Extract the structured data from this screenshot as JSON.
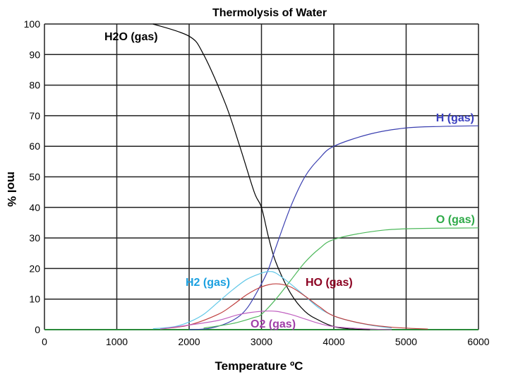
{
  "chart_data": {
    "type": "line",
    "title": "Thermolysis of Water",
    "xlabel": "Temperature ºC",
    "ylabel": "mol %",
    "xlim": [
      0,
      6000
    ],
    "ylim": [
      0,
      100
    ],
    "xticks": [
      0,
      1000,
      2000,
      3000,
      4000,
      5000,
      6000
    ],
    "yticks": [
      0,
      10,
      20,
      30,
      40,
      50,
      60,
      70,
      80,
      90,
      100
    ],
    "grid": true,
    "series": [
      {
        "name": "H2O (gas)",
        "color": "#000000",
        "label_color": "#000000",
        "x": [
          1500,
          2000,
          2200,
          2500,
          2700,
          2900,
          3000,
          3100,
          3200,
          3400,
          3600,
          3800,
          4000,
          4200,
          4500
        ],
        "y": [
          100,
          96,
          90,
          74,
          60,
          45,
          40,
          30,
          22,
          12,
          6,
          3,
          1,
          0.3,
          0
        ]
      },
      {
        "name": "H (gas)",
        "color": "#3a3fb0",
        "label_color": "#3a3fc0",
        "x": [
          2000,
          2300,
          2600,
          2800,
          3000,
          3100,
          3200,
          3400,
          3600,
          3800,
          4000,
          4500,
          5000,
          5500,
          6000
        ],
        "y": [
          0,
          0.5,
          3,
          7,
          15,
          20,
          27,
          40,
          50,
          56,
          60,
          64,
          66,
          66.5,
          66.7
        ]
      },
      {
        "name": "O (gas)",
        "color": "#4cb85a",
        "label_color": "#2eaa48",
        "x": [
          2200,
          2600,
          2900,
          3000,
          3200,
          3400,
          3600,
          3800,
          4000,
          4500,
          5000,
          6000
        ],
        "y": [
          0.5,
          2,
          4,
          5,
          10,
          16,
          22,
          26.5,
          29.5,
          32,
          33,
          33.3
        ]
      },
      {
        "name": "H2 (gas)",
        "color": "#62c8e8",
        "label_color": "#1aa0e0",
        "x": [
          1500,
          1800,
          2000,
          2200,
          2400,
          2600,
          2800,
          3000,
          3100,
          3200,
          3400,
          3600,
          3800,
          4000,
          4200,
          4500,
          4800
        ],
        "y": [
          0.3,
          1,
          2.5,
          5,
          9,
          13,
          16.5,
          18.5,
          19,
          18.5,
          15,
          11,
          7,
          4.5,
          3,
          1.5,
          0.5
        ]
      },
      {
        "name": "HO (gas)",
        "color": "#c04040",
        "label_color": "#8b0020",
        "x": [
          1600,
          2000,
          2400,
          2600,
          2800,
          3000,
          3200,
          3400,
          3600,
          3800,
          4000,
          4400,
          4800,
          5300
        ],
        "y": [
          0.2,
          1.5,
          5,
          8,
          11.5,
          14,
          15,
          14,
          11,
          7.5,
          4.5,
          2,
          0.8,
          0.2
        ]
      },
      {
        "name": "O2 (gas)",
        "color": "#c060c0",
        "label_color": "#a040a8",
        "x": [
          1600,
          2000,
          2400,
          2700,
          3000,
          3200,
          3400,
          3600,
          3800,
          4000,
          4400,
          4800
        ],
        "y": [
          0.2,
          1.5,
          3,
          5,
          6,
          6,
          5,
          3.5,
          2,
          1,
          0.3,
          0
        ]
      }
    ]
  }
}
